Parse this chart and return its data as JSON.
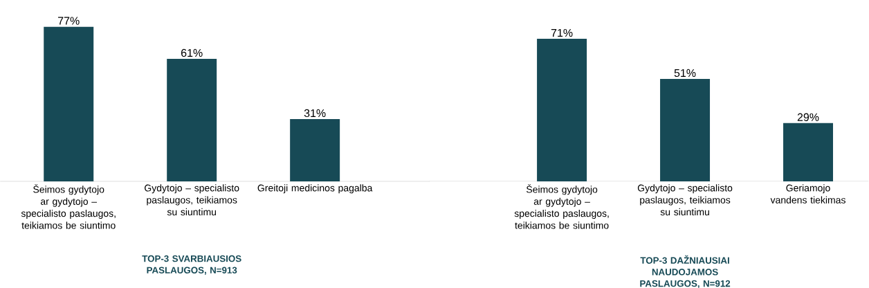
{
  "chart_data": [
    {
      "type": "bar",
      "xlabel": "TOP-3 SVARBIAUSIOS PASLAUGOS, N=913",
      "categories": [
        "Šeimos gydytojo ar gydytojo – specialisto paslaugos, teikiamos be siuntimo",
        "Gydytojo – specialisto paslaugos, teikiamos su siuntimu",
        "Greitoji medicinos pagalba"
      ],
      "values": [
        77,
        61,
        31
      ],
      "value_labels": [
        "77%",
        "61%",
        "31%"
      ],
      "color": "#174a56"
    },
    {
      "type": "bar",
      "xlabel": "TOP-3 DAŽNIAUSIAI NAUDOJAMOS PASLAUGOS, N=912",
      "categories": [
        "Šeimos gydytojo ar gydytojo – specialisto paslaugos, teikiamos be siuntimo",
        "Gydytojo – specialisto paslaugos, teikiamos su siuntimu",
        "Geriamojo vandens tiekimas"
      ],
      "values": [
        71,
        51,
        29
      ],
      "value_labels": [
        "71%",
        "51%",
        "29%"
      ],
      "color": "#174a56"
    }
  ]
}
